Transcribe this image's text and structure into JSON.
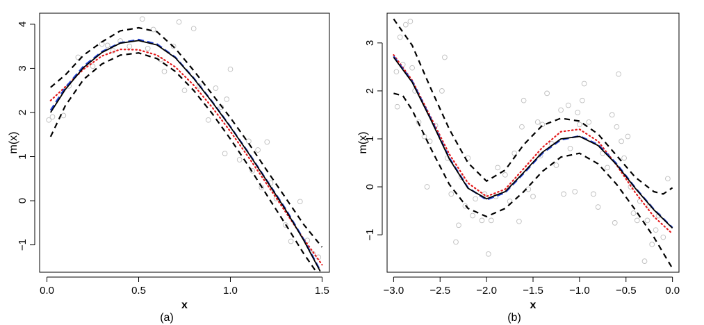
{
  "chart_data": [
    {
      "type": "scatter",
      "caption": "(a)",
      "xlabel": "x",
      "ylabel": "m(x)",
      "xlim": [
        -0.04,
        1.54
      ],
      "ylim": [
        -1.62,
        4.25
      ],
      "xticks": [
        0.0,
        0.5,
        1.0,
        1.5
      ],
      "xtick_labels": [
        "0.0",
        "0.5",
        "1.0",
        "1.5"
      ],
      "yticks": [
        -1,
        0,
        1,
        2,
        3,
        4
      ],
      "ytick_labels": [
        "−1",
        "0",
        "1",
        "2",
        "3",
        "4"
      ],
      "grid": false,
      "points": [
        [
          0.01,
          1.83
        ],
        [
          0.03,
          1.9
        ],
        [
          0.09,
          1.93
        ],
        [
          0.12,
          2.6
        ],
        [
          0.17,
          3.25
        ],
        [
          0.25,
          3.05
        ],
        [
          0.3,
          3.55
        ],
        [
          0.33,
          3.52
        ],
        [
          0.36,
          3.4
        ],
        [
          0.4,
          3.62
        ],
        [
          0.45,
          3.5
        ],
        [
          0.52,
          4.12
        ],
        [
          0.55,
          3.45
        ],
        [
          0.58,
          3.88
        ],
        [
          0.62,
          3.2
        ],
        [
          0.64,
          2.93
        ],
        [
          0.69,
          3.5
        ],
        [
          0.72,
          4.05
        ],
        [
          0.75,
          2.5
        ],
        [
          0.8,
          3.9
        ],
        [
          0.83,
          2.6
        ],
        [
          0.88,
          1.83
        ],
        [
          0.92,
          2.55
        ],
        [
          0.95,
          2.12
        ],
        [
          0.97,
          1.07
        ],
        [
          0.98,
          2.3
        ],
        [
          1.0,
          2.98
        ],
        [
          1.05,
          0.93
        ],
        [
          1.1,
          1.35
        ],
        [
          1.12,
          0.68
        ],
        [
          1.15,
          1.15
        ],
        [
          1.17,
          0.3
        ],
        [
          1.2,
          1.33
        ],
        [
          1.22,
          0.4
        ],
        [
          1.25,
          0.05
        ],
        [
          1.3,
          -0.55
        ],
        [
          1.33,
          -0.92
        ],
        [
          1.38,
          -0.02
        ],
        [
          1.42,
          -0.9
        ],
        [
          1.45,
          -1.2
        ],
        [
          1.48,
          -1.28
        ]
      ],
      "series": [
        {
          "style": "dashed-outer",
          "color": "#000000",
          "x": [
            0.02,
            0.1,
            0.2,
            0.3,
            0.4,
            0.5,
            0.6,
            0.7,
            0.8,
            0.9,
            1.0,
            1.1,
            1.2,
            1.3,
            1.4,
            1.5
          ],
          "y": [
            2.57,
            2.85,
            3.3,
            3.6,
            3.85,
            3.92,
            3.83,
            3.45,
            2.95,
            2.42,
            1.88,
            1.3,
            0.68,
            0.07,
            -0.54,
            -1.05
          ]
        },
        {
          "style": "dashed-outer",
          "color": "#000000",
          "x": [
            0.02,
            0.1,
            0.2,
            0.3,
            0.4,
            0.5,
            0.6,
            0.7,
            0.8,
            0.9,
            1.0,
            1.1,
            1.2,
            1.3,
            1.4,
            1.47
          ],
          "y": [
            1.45,
            2.15,
            2.75,
            3.1,
            3.3,
            3.35,
            3.22,
            2.93,
            2.5,
            1.98,
            1.4,
            0.78,
            0.12,
            -0.53,
            -1.2,
            -1.62
          ]
        },
        {
          "style": "dotted",
          "color": "#e41a1c",
          "x": [
            0.02,
            0.1,
            0.2,
            0.3,
            0.4,
            0.5,
            0.6,
            0.7,
            0.8,
            0.9,
            1.0,
            1.1,
            1.2,
            1.3,
            1.4,
            1.5
          ],
          "y": [
            2.27,
            2.58,
            2.98,
            3.28,
            3.43,
            3.42,
            3.3,
            3.03,
            2.62,
            2.12,
            1.57,
            0.98,
            0.37,
            -0.25,
            -0.87,
            -1.45
          ]
        },
        {
          "style": "dashed",
          "color": "#1f3fd1",
          "x": [
            0.02,
            0.1,
            0.2,
            0.3,
            0.4,
            0.5,
            0.6,
            0.7,
            0.8,
            0.9,
            1.0,
            1.1,
            1.2,
            1.3,
            1.4,
            1.49
          ],
          "y": [
            2.05,
            2.56,
            3.05,
            3.38,
            3.58,
            3.65,
            3.55,
            3.25,
            2.78,
            2.25,
            1.68,
            1.08,
            0.45,
            -0.18,
            -0.88,
            -1.58
          ]
        },
        {
          "style": "solid",
          "color": "#000000",
          "x": [
            0.02,
            0.1,
            0.2,
            0.3,
            0.4,
            0.5,
            0.6,
            0.7,
            0.8,
            0.9,
            1.0,
            1.1,
            1.2,
            1.3,
            1.4,
            1.49
          ],
          "y": [
            2.0,
            2.52,
            3.02,
            3.36,
            3.57,
            3.63,
            3.53,
            3.24,
            2.77,
            2.24,
            1.67,
            1.07,
            0.44,
            -0.2,
            -0.9,
            -1.6
          ]
        }
      ]
    },
    {
      "type": "scatter",
      "caption": "(b)",
      "xlabel": "x",
      "ylabel": "m(x)",
      "xlim": [
        -3.07,
        0.07
      ],
      "ylim": [
        -1.78,
        3.62
      ],
      "xticks": [
        -3.0,
        -2.5,
        -2.0,
        -1.5,
        -1.0,
        -0.5,
        0.0
      ],
      "xtick_labels": [
        "−3.0",
        "−2.5",
        "−2.0",
        "−1.5",
        "−1.0",
        "−0.5",
        "0.0"
      ],
      "yticks": [
        -1,
        0,
        1,
        2,
        3
      ],
      "ytick_labels": [
        "−1",
        "0",
        "1",
        "2",
        "3"
      ],
      "grid": false,
      "points": [
        [
          -2.97,
          2.4
        ],
        [
          -2.96,
          1.67
        ],
        [
          -2.93,
          3.12
        ],
        [
          -2.9,
          2.55
        ],
        [
          -2.87,
          3.38
        ],
        [
          -2.82,
          3.45
        ],
        [
          -2.8,
          2.48
        ],
        [
          -2.77,
          2.0
        ],
        [
          -2.73,
          1.35
        ],
        [
          -2.67,
          1.05
        ],
        [
          -2.64,
          0.0
        ],
        [
          -2.61,
          0.95
        ],
        [
          -2.55,
          1.28
        ],
        [
          -2.48,
          2.0
        ],
        [
          -2.45,
          2.7
        ],
        [
          -2.42,
          0.6
        ],
        [
          -2.38,
          -0.15
        ],
        [
          -2.33,
          -1.15
        ],
        [
          -2.3,
          -0.8
        ],
        [
          -2.27,
          0.2
        ],
        [
          -2.23,
          -0.4
        ],
        [
          -2.2,
          0.6
        ],
        [
          -2.15,
          -0.6
        ],
        [
          -2.12,
          -0.25
        ],
        [
          -2.05,
          -0.7
        ],
        [
          -2.02,
          -0.15
        ],
        [
          -1.98,
          -1.4
        ],
        [
          -1.95,
          -0.7
        ],
        [
          -1.9,
          -0.2
        ],
        [
          -1.88,
          0.4
        ],
        [
          -1.8,
          0.25
        ],
        [
          -1.75,
          -0.3
        ],
        [
          -1.7,
          0.7
        ],
        [
          -1.65,
          -0.72
        ],
        [
          -1.62,
          1.25
        ],
        [
          -1.6,
          1.8
        ],
        [
          -1.55,
          -0.05
        ],
        [
          -1.5,
          -0.2
        ],
        [
          -1.45,
          1.35
        ],
        [
          -1.42,
          0.65
        ],
        [
          -1.4,
          1.3
        ],
        [
          -1.35,
          1.95
        ],
        [
          -1.3,
          0.9
        ],
        [
          -1.25,
          0.45
        ],
        [
          -1.2,
          1.6
        ],
        [
          -1.17,
          -0.15
        ],
        [
          -1.12,
          1.7
        ],
        [
          -1.1,
          0.8
        ],
        [
          -1.05,
          -0.1
        ],
        [
          -1.02,
          1.55
        ],
        [
          -1.0,
          1.3
        ],
        [
          -0.97,
          1.8
        ],
        [
          -0.95,
          2.15
        ],
        [
          -0.9,
          1.35
        ],
        [
          -0.85,
          -0.15
        ],
        [
          -0.8,
          -0.42
        ],
        [
          -0.75,
          0.7
        ],
        [
          -0.7,
          0.4
        ],
        [
          -0.65,
          1.5
        ],
        [
          -0.62,
          -0.75
        ],
        [
          -0.6,
          1.25
        ],
        [
          -0.58,
          2.35
        ],
        [
          -0.55,
          0.95
        ],
        [
          -0.52,
          0.6
        ],
        [
          -0.48,
          1.05
        ],
        [
          -0.45,
          0.0
        ],
        [
          -0.42,
          -0.55
        ],
        [
          -0.38,
          -0.7
        ],
        [
          -0.35,
          -0.3
        ],
        [
          -0.3,
          -1.55
        ],
        [
          -0.27,
          -0.7
        ],
        [
          -0.25,
          -0.4
        ],
        [
          -0.22,
          -1.2
        ],
        [
          -0.18,
          -0.9
        ],
        [
          -0.15,
          -0.6
        ],
        [
          -0.1,
          -1.05
        ],
        [
          -0.05,
          0.17
        ]
      ],
      "series": [
        {
          "style": "dashed-outer",
          "color": "#000000",
          "x": [
            -3.0,
            -2.8,
            -2.6,
            -2.4,
            -2.2,
            -2.0,
            -1.8,
            -1.6,
            -1.4,
            -1.2,
            -1.0,
            -0.8,
            -0.6,
            -0.4,
            -0.2,
            -0.1,
            0.0
          ],
          "y": [
            3.5,
            2.95,
            2.05,
            1.2,
            0.5,
            0.12,
            0.35,
            0.88,
            1.28,
            1.43,
            1.37,
            1.1,
            0.65,
            0.2,
            -0.1,
            -0.15,
            -0.02
          ]
        },
        {
          "style": "dashed-outer",
          "color": "#000000",
          "x": [
            -3.0,
            -2.9,
            -2.8,
            -2.6,
            -2.4,
            -2.2,
            -2.0,
            -1.8,
            -1.6,
            -1.4,
            -1.2,
            -1.0,
            -0.8,
            -0.6,
            -0.4,
            -0.2,
            0.0
          ],
          "y": [
            1.95,
            1.9,
            1.6,
            0.8,
            0.05,
            -0.45,
            -0.62,
            -0.45,
            -0.1,
            0.32,
            0.62,
            0.7,
            0.48,
            0.05,
            -0.48,
            -1.05,
            -1.7
          ]
        },
        {
          "style": "dotted",
          "color": "#e41a1c",
          "x": [
            -3.0,
            -2.8,
            -2.6,
            -2.4,
            -2.2,
            -2.0,
            -1.8,
            -1.6,
            -1.4,
            -1.2,
            -1.0,
            -0.8,
            -0.6,
            -0.4,
            -0.2,
            0.0
          ],
          "y": [
            2.75,
            2.22,
            1.45,
            0.68,
            0.08,
            -0.2,
            -0.05,
            0.38,
            0.82,
            1.15,
            1.2,
            0.95,
            0.45,
            -0.12,
            -0.62,
            -0.98
          ]
        },
        {
          "style": "dashed",
          "color": "#1f3fd1",
          "x": [
            -3.0,
            -2.8,
            -2.6,
            -2.4,
            -2.2,
            -2.0,
            -1.8,
            -1.6,
            -1.4,
            -1.2,
            -1.0,
            -0.8,
            -0.6,
            -0.4,
            -0.2,
            0.0
          ],
          "y": [
            2.72,
            2.2,
            1.42,
            0.6,
            -0.02,
            -0.27,
            -0.12,
            0.28,
            0.7,
            0.98,
            1.06,
            0.88,
            0.48,
            -0.02,
            -0.47,
            -0.85
          ]
        },
        {
          "style": "solid",
          "color": "#000000",
          "x": [
            -3.0,
            -2.8,
            -2.6,
            -2.4,
            -2.2,
            -2.0,
            -1.8,
            -1.6,
            -1.4,
            -1.2,
            -1.0,
            -0.8,
            -0.6,
            -0.4,
            -0.2,
            0.0
          ],
          "y": [
            2.7,
            2.18,
            1.4,
            0.58,
            -0.03,
            -0.25,
            -0.1,
            0.3,
            0.72,
            1.0,
            1.05,
            0.86,
            0.46,
            -0.03,
            -0.48,
            -0.86
          ]
        }
      ]
    }
  ]
}
